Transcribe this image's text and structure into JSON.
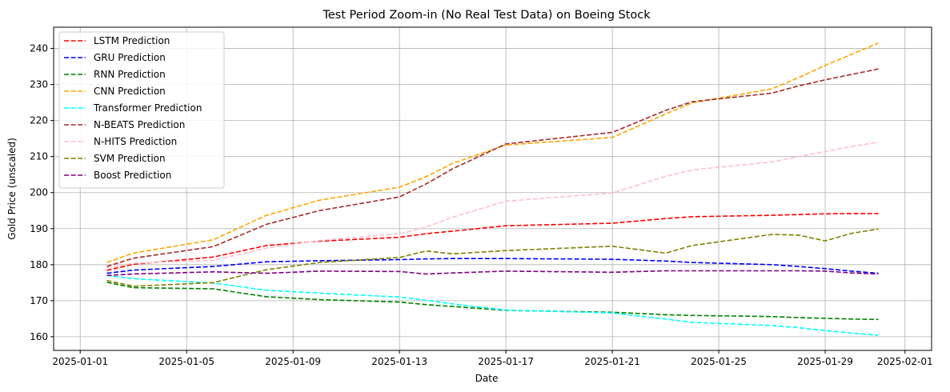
{
  "chart_data": {
    "type": "line",
    "title": "Test Period Zoom-in (No Real Test Data) on Boeing Stock",
    "xlabel": "Date",
    "ylabel": "Gold Price (unscaled)",
    "x_range": [
      "2024-12-31",
      "2025-02-02"
    ],
    "ylim": [
      156.2,
      245.9
    ],
    "x_ticks": [
      "2025-01-01",
      "2025-01-05",
      "2025-01-09",
      "2025-01-13",
      "2025-01-17",
      "2025-01-21",
      "2025-01-25",
      "2025-01-29",
      "2025-02-01"
    ],
    "x_tick_labels": [
      "2025-01-01",
      "2025-01-05",
      "2025-01-09",
      "2025-01-13",
      "2025-01-17",
      "2025-01-21",
      "2025-01-25",
      "2025-01-29",
      "2025-02-01"
    ],
    "y_ticks": [
      160,
      170,
      180,
      190,
      200,
      210,
      220,
      230,
      240
    ],
    "y_tick_labels": [
      "160",
      "170",
      "180",
      "190",
      "200",
      "210",
      "220",
      "230",
      "240"
    ],
    "grid": true,
    "legend_position": "upper-left",
    "line_style": "dashed",
    "x": [
      "2025-01-02",
      "2025-01-03",
      "2025-01-06",
      "2025-01-08",
      "2025-01-10",
      "2025-01-13",
      "2025-01-14",
      "2025-01-15",
      "2025-01-17",
      "2025-01-21",
      "2025-01-23",
      "2025-01-24",
      "2025-01-27",
      "2025-01-28",
      "2025-01-29",
      "2025-01-30",
      "2025-01-31"
    ],
    "series": [
      {
        "name": "LSTM Prediction",
        "color": "#ff0000",
        "values": [
          178.4,
          180.1,
          182.1,
          185.3,
          186.5,
          187.6,
          188.6,
          189.3,
          190.8,
          191.5,
          192.8,
          193.3,
          193.7,
          193.9,
          194.1,
          194.2,
          194.2
        ]
      },
      {
        "name": "GRU Prediction",
        "color": "#0000ff",
        "values": [
          177.6,
          178.5,
          179.5,
          180.8,
          181.1,
          181.4,
          181.6,
          181.7,
          181.7,
          181.5,
          181.0,
          180.6,
          180.0,
          179.5,
          178.9,
          178.2,
          177.6
        ]
      },
      {
        "name": "RNN Prediction",
        "color": "#008000",
        "values": [
          175.1,
          173.6,
          173.3,
          171.1,
          170.3,
          169.6,
          168.9,
          168.4,
          167.3,
          166.8,
          166.1,
          165.9,
          165.6,
          165.3,
          165.1,
          164.9,
          164.8
        ]
      },
      {
        "name": "CNN Prediction",
        "color": "#ffa500",
        "values": [
          180.6,
          183.2,
          186.9,
          193.7,
          197.9,
          201.5,
          204.4,
          208.1,
          213.2,
          215.3,
          221.8,
          224.9,
          228.8,
          231.9,
          235.3,
          238.4,
          241.5
        ]
      },
      {
        "name": "Transformer Prediction",
        "color": "#00ffff",
        "values": [
          177.0,
          176.1,
          174.9,
          172.9,
          172.1,
          171.0,
          170.1,
          169.1,
          167.4,
          166.6,
          164.9,
          164.0,
          163.1,
          162.5,
          161.7,
          161.0,
          160.4
        ]
      },
      {
        "name": "N-BEATS Prediction",
        "color": "#a52a2a",
        "values": [
          179.5,
          181.8,
          185.0,
          191.2,
          195.0,
          198.8,
          202.4,
          206.6,
          213.5,
          216.7,
          222.8,
          225.2,
          227.6,
          229.6,
          231.3,
          232.8,
          234.3
        ]
      },
      {
        "name": "N-HITS Prediction",
        "color": "#ffc0cb",
        "values": [
          179.0,
          180.4,
          181.2,
          184.6,
          186.7,
          188.6,
          190.4,
          193.2,
          197.6,
          199.9,
          204.5,
          206.3,
          208.5,
          210.0,
          211.4,
          212.8,
          214.0
        ]
      },
      {
        "name": "SVM Prediction",
        "color": "#808000",
        "values": [
          175.6,
          174.0,
          175.0,
          178.6,
          180.6,
          182.0,
          183.8,
          183.0,
          183.9,
          185.1,
          183.2,
          185.3,
          188.4,
          188.2,
          186.6,
          188.7,
          189.9
        ]
      },
      {
        "name": "Boost Prediction",
        "color": "#800080",
        "values": [
          177.0,
          177.4,
          178.0,
          177.6,
          178.2,
          178.1,
          177.4,
          177.7,
          178.2,
          177.9,
          178.3,
          178.3,
          178.3,
          178.3,
          178.2,
          177.7,
          177.4
        ]
      }
    ]
  }
}
